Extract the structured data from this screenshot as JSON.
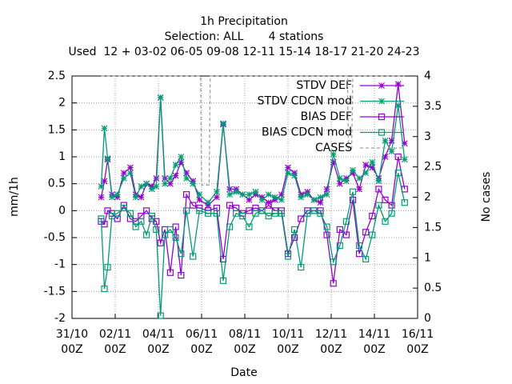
{
  "chart_data": {
    "type": "line",
    "title": "1h Precipitation",
    "subtitle": [
      "Selection: ALL       4 stations",
      "Used  12 + 03-02 06-05 09-08 12-11 15-14 18-17 21-20 24-23"
    ],
    "xlabel": "Date",
    "ylabel": "mm/1h",
    "y2label": "No cases",
    "grid": true,
    "legend": "top-right",
    "xlim": [
      0,
      16
    ],
    "xticks": [
      {
        "value": 0,
        "label": "31/10\n00Z"
      },
      {
        "value": 2,
        "label": "02/11\n00Z"
      },
      {
        "value": 4,
        "label": "04/11\n00Z"
      },
      {
        "value": 6,
        "label": "06/11\n00Z"
      },
      {
        "value": 8,
        "label": "08/11\n00Z"
      },
      {
        "value": 10,
        "label": "10/11\n00Z"
      },
      {
        "value": 12,
        "label": "12/11\n00Z"
      },
      {
        "value": 14,
        "label": "14/11\n00Z"
      },
      {
        "value": 16,
        "label": "16/11\n00Z"
      }
    ],
    "ylim": [
      -2,
      2.5
    ],
    "yticks": [
      -2,
      -1.5,
      -1,
      -0.5,
      0,
      0.5,
      1,
      1.5,
      2,
      2.5
    ],
    "y2lim": [
      0,
      4
    ],
    "y2ticks": [
      0,
      0.5,
      1,
      1.5,
      2,
      2.5,
      3,
      3.5,
      4
    ],
    "x": [
      1.35,
      1.5,
      1.65,
      1.85,
      2.1,
      2.4,
      2.7,
      2.95,
      3.2,
      3.45,
      3.7,
      3.9,
      4.1,
      4.3,
      4.55,
      4.8,
      5.05,
      5.3,
      5.6,
      5.9,
      6.3,
      6.7,
      7.0,
      7.3,
      7.6,
      7.9,
      8.2,
      8.5,
      8.8,
      9.1,
      9.4,
      9.7,
      10.0,
      10.3,
      10.6,
      10.9,
      11.2,
      11.5,
      11.8,
      12.1,
      12.4,
      12.7,
      13.0,
      13.3,
      13.6,
      13.9,
      14.2,
      14.5,
      14.8,
      15.1,
      15.4
    ],
    "series": [
      {
        "name": "STDV DEF",
        "color": "#9400d3",
        "marker": "star",
        "values": [
          0.25,
          0.55,
          0.95,
          0.3,
          0.25,
          0.7,
          0.8,
          0.3,
          0.25,
          0.5,
          0.45,
          0.6,
          2.1,
          0.6,
          0.5,
          0.65,
          0.9,
          0.7,
          0.55,
          0.2,
          0.1,
          0.25,
          1.6,
          0.4,
          0.4,
          0.3,
          0.2,
          0.3,
          0.25,
          0.15,
          0.2,
          0.3,
          0.8,
          0.7,
          0.3,
          0.35,
          0.2,
          0.15,
          0.4,
          0.9,
          0.5,
          0.6,
          0.7,
          0.4,
          0.85,
          0.8,
          0.6,
          1.0,
          1.3,
          2.35,
          1.25
        ]
      },
      {
        "name": "STDV CDCN mod",
        "color": "#009e73",
        "marker": "star",
        "values": [
          0.45,
          1.53,
          0.97,
          0.25,
          0.3,
          0.6,
          0.7,
          0.25,
          0.45,
          0.5,
          0.4,
          0.45,
          2.1,
          0.5,
          0.6,
          0.85,
          1.0,
          0.6,
          0.5,
          0.3,
          0.15,
          0.35,
          1.62,
          0.3,
          0.35,
          0.3,
          0.3,
          0.35,
          0.2,
          0.3,
          0.25,
          0.2,
          0.7,
          0.65,
          0.25,
          0.3,
          0.2,
          0.25,
          0.3,
          1.05,
          0.6,
          0.55,
          0.75,
          0.6,
          0.7,
          0.9,
          0.55,
          1.3,
          1.1,
          1.95,
          0.95
        ]
      },
      {
        "name": "BIAS DEF",
        "color": "#9400d3",
        "marker": "square",
        "values": [
          -0.2,
          -0.25,
          0.0,
          -0.05,
          -0.15,
          0.1,
          -0.15,
          -0.2,
          -0.1,
          0.0,
          -0.15,
          -0.2,
          -0.6,
          -0.35,
          -1.15,
          -0.3,
          -1.2,
          0.3,
          0.1,
          0.05,
          0.0,
          0.05,
          -0.9,
          0.1,
          0.05,
          -0.05,
          0.0,
          0.05,
          0.0,
          0.1,
          0.0,
          0.0,
          -0.8,
          -0.5,
          -0.15,
          0.0,
          0.0,
          0.0,
          -0.45,
          -1.35,
          -0.35,
          -0.45,
          0.2,
          -0.8,
          -0.4,
          -0.1,
          0.4,
          0.2,
          0.1,
          1.0,
          0.4
        ]
      },
      {
        "name": "BIAS CDCN mod",
        "color": "#009e73",
        "marker": "square",
        "values": [
          -0.15,
          -1.45,
          -1.05,
          -0.1,
          -0.05,
          0.05,
          -0.05,
          -0.3,
          -0.2,
          -0.45,
          -0.1,
          -0.35,
          -1.95,
          -0.45,
          -0.35,
          -0.5,
          -0.8,
          0.0,
          -0.85,
          0.0,
          -0.05,
          -0.05,
          -1.3,
          -0.3,
          -0.05,
          -0.1,
          -0.3,
          -0.05,
          0.0,
          -0.1,
          -0.05,
          -0.05,
          -0.85,
          -0.35,
          -1.05,
          -0.05,
          0.0,
          -0.05,
          -0.3,
          -0.95,
          -0.65,
          -0.2,
          0.35,
          -0.65,
          -0.9,
          -0.45,
          0.1,
          -0.2,
          -0.05,
          0.7,
          0.15
        ]
      },
      {
        "name": "CASES",
        "color": "#a0a0a0",
        "marker": "dash",
        "axis": "y2",
        "x": [
          1.35,
          5.95,
          6.0,
          6.35,
          6.4,
          12.75,
          12.8,
          12.95,
          13.0,
          15.4
        ],
        "values": [
          4,
          4,
          2.2,
          2.2,
          4,
          4,
          2.8,
          2.8,
          4,
          4
        ]
      }
    ]
  }
}
